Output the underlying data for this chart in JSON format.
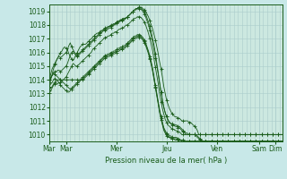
{
  "background_color": "#c8e8e8",
  "plot_bg_color": "#cce8e0",
  "grid_color": "#aacccc",
  "line_color": "#1a5c1a",
  "xlabel": "Pression niveau de la mer( hPa )",
  "ylim": [
    1009.5,
    1019.5
  ],
  "yticks": [
    1010,
    1011,
    1012,
    1013,
    1014,
    1015,
    1016,
    1017,
    1018,
    1019
  ],
  "xtick_labels": [
    "Mar",
    "Mar",
    "Mer",
    "Jeu",
    "Ven",
    "Sam",
    "Dim"
  ],
  "xtick_positions": [
    0,
    12,
    48,
    84,
    120,
    150,
    162
  ],
  "num_points": 168,
  "series": [
    [
      1013.5,
      1014.0,
      1014.4,
      1014.8,
      1015.1,
      1015.4,
      1015.6,
      1015.8,
      1016.0,
      1016.1,
      1016.3,
      1016.4,
      1016.3,
      1016.2,
      1015.9,
      1015.7,
      1015.5,
      1015.4,
      1015.6,
      1015.8,
      1016.0,
      1016.2,
      1016.4,
      1016.5,
      1016.6,
      1016.6,
      1016.6,
      1016.7,
      1016.8,
      1016.9,
      1017.0,
      1017.1,
      1017.2,
      1017.3,
      1017.4,
      1017.4,
      1017.5,
      1017.6,
      1017.6,
      1017.7,
      1017.7,
      1017.8,
      1017.8,
      1017.9,
      1017.9,
      1018.0,
      1018.0,
      1018.1,
      1018.2,
      1018.2,
      1018.3,
      1018.3,
      1018.4,
      1018.4,
      1018.5,
      1018.5,
      1018.6,
      1018.7,
      1018.8,
      1018.9,
      1019.0,
      1019.1,
      1019.2,
      1019.2,
      1019.3,
      1019.3,
      1019.3,
      1019.2,
      1019.1,
      1019.0,
      1018.8,
      1018.6,
      1018.3,
      1018.0,
      1017.7,
      1017.3,
      1016.9,
      1016.4,
      1015.9,
      1015.3,
      1014.8,
      1014.2,
      1013.5,
      1013.0,
      1012.5,
      1012.2,
      1011.9,
      1011.7,
      1011.5,
      1011.4,
      1011.3,
      1011.3,
      1011.2,
      1011.2,
      1011.1,
      1011.0,
      1011.0,
      1011.0,
      1011.0,
      1011.0,
      1010.9,
      1010.9,
      1010.8,
      1010.7,
      1010.6,
      1010.5,
      1010.3,
      1010.0,
      1010.0,
      1010.0,
      1010.0,
      1010.0,
      1010.0,
      1010.0,
      1010.0,
      1010.0,
      1010.0,
      1010.0,
      1010.0,
      1010.0,
      1010.0,
      1010.0,
      1010.0,
      1010.0,
      1010.0,
      1010.0,
      1010.0,
      1010.0,
      1010.0,
      1010.0,
      1010.0,
      1010.0,
      1010.0,
      1010.0,
      1010.0,
      1010.0,
      1010.0,
      1010.0,
      1010.0,
      1010.0,
      1010.0,
      1010.0,
      1010.0,
      1010.0,
      1010.0,
      1010.0,
      1010.0,
      1010.0,
      1010.0,
      1010.0,
      1010.0,
      1010.0,
      1010.0,
      1010.0,
      1010.0,
      1010.0,
      1010.0,
      1010.0,
      1010.0,
      1010.0,
      1010.0,
      1010.0,
      1010.0,
      1010.0,
      1010.0,
      1010.0,
      1010.0,
      1010.0
    ],
    [
      1014.0,
      1014.4,
      1014.8,
      1015.0,
      1015.2,
      1015.4,
      1015.6,
      1015.7,
      1015.6,
      1015.7,
      1015.8,
      1015.9,
      1016.0,
      1016.2,
      1016.5,
      1016.7,
      1016.4,
      1016.2,
      1016.0,
      1015.9,
      1015.8,
      1015.9,
      1016.0,
      1016.1,
      1016.2,
      1016.3,
      1016.4,
      1016.5,
      1016.6,
      1016.7,
      1016.8,
      1016.9,
      1017.0,
      1017.1,
      1017.2,
      1017.3,
      1017.4,
      1017.5,
      1017.6,
      1017.7,
      1017.8,
      1017.8,
      1017.9,
      1017.9,
      1018.0,
      1018.0,
      1018.1,
      1018.1,
      1018.2,
      1018.3,
      1018.3,
      1018.4,
      1018.4,
      1018.5,
      1018.5,
      1018.5,
      1018.6,
      1018.7,
      1018.8,
      1018.9,
      1019.0,
      1019.1,
      1019.2,
      1019.2,
      1019.3,
      1019.3,
      1019.2,
      1019.1,
      1019.0,
      1018.8,
      1018.5,
      1018.2,
      1017.9,
      1017.5,
      1017.0,
      1016.5,
      1015.9,
      1015.2,
      1014.5,
      1013.8,
      1013.1,
      1012.5,
      1012.0,
      1011.6,
      1011.3,
      1011.1,
      1010.9,
      1010.8,
      1010.8,
      1010.7,
      1010.7,
      1010.7,
      1010.6,
      1010.6,
      1010.5,
      1010.4,
      1010.3,
      1010.2,
      1010.1,
      1010.1,
      1010.0,
      1010.0,
      1010.0,
      1010.0,
      1010.0,
      1010.0,
      1009.9,
      1009.8,
      1009.7,
      1009.6,
      1009.5,
      1009.5,
      1009.5,
      1009.5,
      1009.5,
      1009.5,
      1009.5,
      1009.5,
      1009.5,
      1009.5,
      1009.5,
      1009.5,
      1009.5,
      1009.5,
      1009.5,
      1009.5,
      1009.5,
      1009.5,
      1009.5,
      1009.5,
      1009.5,
      1009.5,
      1009.5,
      1009.5,
      1009.5,
      1009.5,
      1009.5,
      1009.5,
      1009.5,
      1009.5,
      1009.5,
      1009.5,
      1009.5,
      1009.5,
      1009.5,
      1009.5,
      1009.5,
      1009.5,
      1009.5,
      1009.5,
      1009.5,
      1009.5,
      1009.5,
      1009.5,
      1009.5,
      1009.5,
      1009.5,
      1009.5,
      1009.5,
      1009.5,
      1009.5,
      1009.5,
      1009.5,
      1009.5,
      1009.5,
      1009.5,
      1009.5,
      1009.5
    ],
    [
      1013.8,
      1014.1,
      1014.3,
      1014.5,
      1014.6,
      1014.6,
      1014.7,
      1014.7,
      1014.6,
      1014.7,
      1014.8,
      1014.9,
      1015.0,
      1015.2,
      1015.5,
      1015.8,
      1016.0,
      1016.1,
      1015.9,
      1015.8,
      1015.7,
      1015.8,
      1015.9,
      1016.0,
      1016.1,
      1016.2,
      1016.3,
      1016.4,
      1016.5,
      1016.6,
      1016.7,
      1016.8,
      1016.9,
      1017.0,
      1017.1,
      1017.2,
      1017.3,
      1017.4,
      1017.5,
      1017.6,
      1017.6,
      1017.7,
      1017.7,
      1017.8,
      1017.8,
      1017.9,
      1018.0,
      1018.0,
      1018.1,
      1018.2,
      1018.2,
      1018.3,
      1018.3,
      1018.4,
      1018.4,
      1018.5,
      1018.6,
      1018.7,
      1018.8,
      1018.9,
      1019.0,
      1019.1,
      1019.1,
      1019.2,
      1019.2,
      1019.2,
      1019.1,
      1019.0,
      1018.8,
      1018.6,
      1018.3,
      1018.0,
      1017.6,
      1017.2,
      1016.7,
      1016.2,
      1015.6,
      1015.0,
      1014.4,
      1013.7,
      1013.1,
      1012.5,
      1012.0,
      1011.6,
      1011.3,
      1011.0,
      1010.9,
      1010.8,
      1010.7,
      1010.7,
      1010.6,
      1010.6,
      1010.5,
      1010.5,
      1010.4,
      1010.3,
      1010.2,
      1010.1,
      1010.0,
      1010.0,
      1010.0,
      1010.0,
      1010.0,
      1010.0,
      1010.0,
      1009.9,
      1009.8,
      1009.7,
      1009.6,
      1009.5,
      1009.5,
      1009.5,
      1009.5,
      1009.5,
      1009.5,
      1009.5,
      1009.5,
      1009.5,
      1009.5,
      1009.5,
      1009.5,
      1009.5,
      1009.5,
      1009.5,
      1009.5,
      1009.5,
      1009.5,
      1009.5,
      1009.5,
      1009.5,
      1009.5,
      1009.5,
      1009.5,
      1009.5,
      1009.5,
      1009.5,
      1009.5,
      1009.5,
      1009.5,
      1009.5,
      1009.5,
      1009.5,
      1009.5,
      1009.5,
      1009.5,
      1009.5,
      1009.5,
      1009.5,
      1009.5,
      1009.5,
      1009.5,
      1009.5,
      1009.5,
      1009.5,
      1009.5,
      1009.5,
      1009.5,
      1009.5,
      1009.5,
      1009.5,
      1009.5,
      1009.5,
      1009.5,
      1009.5,
      1009.5,
      1009.5,
      1009.5,
      1009.5
    ],
    [
      1013.2,
      1013.4,
      1013.5,
      1013.7,
      1013.7,
      1013.7,
      1013.7,
      1013.8,
      1013.8,
      1013.9,
      1014.0,
      1014.1,
      1014.2,
      1014.4,
      1014.6,
      1014.8,
      1015.0,
      1015.2,
      1015.1,
      1015.0,
      1015.0,
      1015.1,
      1015.2,
      1015.3,
      1015.4,
      1015.5,
      1015.6,
      1015.7,
      1015.8,
      1015.9,
      1016.0,
      1016.2,
      1016.3,
      1016.4,
      1016.5,
      1016.6,
      1016.7,
      1016.8,
      1016.9,
      1017.0,
      1017.1,
      1017.1,
      1017.2,
      1017.2,
      1017.3,
      1017.4,
      1017.4,
      1017.5,
      1017.5,
      1017.6,
      1017.7,
      1017.7,
      1017.8,
      1017.8,
      1017.9,
      1018.0,
      1018.0,
      1018.1,
      1018.2,
      1018.3,
      1018.4,
      1018.5,
      1018.5,
      1018.6,
      1018.6,
      1018.6,
      1018.5,
      1018.4,
      1018.2,
      1018.0,
      1017.7,
      1017.4,
      1017.0,
      1016.6,
      1016.1,
      1015.5,
      1014.9,
      1014.3,
      1013.7,
      1013.0,
      1012.4,
      1011.9,
      1011.5,
      1011.1,
      1010.9,
      1010.7,
      1010.6,
      1010.5,
      1010.4,
      1010.4,
      1010.3,
      1010.3,
      1010.2,
      1010.2,
      1010.1,
      1010.0,
      1010.0,
      1010.0,
      1010.0,
      1010.0,
      1010.0,
      1010.0,
      1010.0,
      1010.0,
      1010.0,
      1010.0,
      1010.0,
      1010.0,
      1010.0,
      1010.0,
      1010.0,
      1010.0,
      1010.0,
      1010.0,
      1010.0,
      1010.0,
      1010.0,
      1010.0,
      1010.0,
      1010.0,
      1010.0,
      1010.0,
      1010.0,
      1010.0,
      1010.0,
      1010.0,
      1010.0,
      1010.0,
      1010.0,
      1010.0,
      1010.0,
      1010.0,
      1010.0,
      1010.0,
      1010.0,
      1010.0,
      1010.0,
      1010.0,
      1010.0,
      1010.0,
      1010.0,
      1010.0,
      1010.0,
      1010.0,
      1010.0,
      1010.0,
      1010.0,
      1010.0,
      1010.0,
      1010.0,
      1010.0,
      1010.0,
      1010.0,
      1010.0,
      1010.0,
      1010.0,
      1010.0,
      1010.0,
      1010.0,
      1010.0,
      1010.0,
      1010.0,
      1010.0,
      1010.0,
      1010.0,
      1010.0,
      1010.0,
      1010.0
    ],
    [
      1014.0,
      1014.2,
      1014.3,
      1014.5,
      1014.4,
      1014.3,
      1014.2,
      1014.1,
      1014.0,
      1013.9,
      1013.8,
      1013.7,
      1013.6,
      1013.5,
      1013.4,
      1013.3,
      1013.4,
      1013.5,
      1013.6,
      1013.7,
      1013.8,
      1013.9,
      1014.0,
      1014.1,
      1014.2,
      1014.3,
      1014.4,
      1014.5,
      1014.6,
      1014.7,
      1014.8,
      1014.9,
      1015.0,
      1015.1,
      1015.2,
      1015.3,
      1015.4,
      1015.5,
      1015.6,
      1015.7,
      1015.8,
      1015.8,
      1015.9,
      1015.9,
      1016.0,
      1016.0,
      1016.1,
      1016.1,
      1016.2,
      1016.3,
      1016.3,
      1016.4,
      1016.4,
      1016.5,
      1016.5,
      1016.6,
      1016.7,
      1016.8,
      1016.9,
      1017.0,
      1017.1,
      1017.2,
      1017.2,
      1017.3,
      1017.3,
      1017.3,
      1017.2,
      1017.1,
      1016.9,
      1016.7,
      1016.4,
      1016.1,
      1015.7,
      1015.3,
      1014.8,
      1014.2,
      1013.6,
      1013.0,
      1012.4,
      1011.8,
      1011.3,
      1010.9,
      1010.5,
      1010.3,
      1010.1,
      1010.0,
      1009.9,
      1009.9,
      1009.8,
      1009.8,
      1009.8,
      1009.8,
      1009.7,
      1009.7,
      1009.6,
      1009.6,
      1009.6,
      1009.5,
      1009.5,
      1009.5,
      1009.5,
      1009.5,
      1009.5,
      1009.5,
      1009.5,
      1009.5,
      1009.5,
      1009.5,
      1009.5,
      1009.5,
      1009.5,
      1009.5,
      1009.5,
      1009.5,
      1009.5,
      1009.5,
      1009.5,
      1009.5,
      1009.5,
      1009.5,
      1009.5,
      1009.5,
      1009.5,
      1009.5,
      1009.5,
      1009.5,
      1009.5,
      1009.5,
      1009.5,
      1009.5,
      1009.5,
      1009.5,
      1009.5,
      1009.5,
      1009.5,
      1009.5,
      1009.5,
      1009.5,
      1009.5,
      1009.5,
      1009.5,
      1009.5,
      1009.5,
      1009.5,
      1009.5,
      1009.5,
      1009.5,
      1009.5,
      1009.5,
      1009.5,
      1009.5,
      1009.5,
      1009.5,
      1009.5,
      1009.5,
      1009.5,
      1009.5,
      1009.5,
      1009.5,
      1009.5,
      1009.5,
      1009.5,
      1009.5,
      1009.5,
      1009.5,
      1009.5,
      1009.5,
      1009.5
    ],
    [
      1013.5,
      1013.7,
      1013.8,
      1014.0,
      1014.1,
      1014.0,
      1013.9,
      1013.8,
      1013.6,
      1013.5,
      1013.4,
      1013.3,
      1013.2,
      1013.1,
      1013.1,
      1013.2,
      1013.3,
      1013.4,
      1013.5,
      1013.6,
      1013.7,
      1013.8,
      1013.9,
      1014.0,
      1014.1,
      1014.2,
      1014.3,
      1014.4,
      1014.5,
      1014.6,
      1014.7,
      1014.8,
      1014.9,
      1015.0,
      1015.1,
      1015.2,
      1015.3,
      1015.4,
      1015.5,
      1015.6,
      1015.7,
      1015.7,
      1015.8,
      1015.8,
      1015.9,
      1015.9,
      1016.0,
      1016.0,
      1016.1,
      1016.2,
      1016.2,
      1016.3,
      1016.3,
      1016.4,
      1016.4,
      1016.5,
      1016.6,
      1016.7,
      1016.8,
      1016.9,
      1017.0,
      1017.1,
      1017.1,
      1017.2,
      1017.2,
      1017.2,
      1017.1,
      1017.0,
      1016.8,
      1016.6,
      1016.3,
      1016.0,
      1015.6,
      1015.2,
      1014.7,
      1014.1,
      1013.5,
      1012.9,
      1012.3,
      1011.7,
      1011.2,
      1010.8,
      1010.4,
      1010.2,
      1010.0,
      1009.9,
      1009.8,
      1009.8,
      1009.7,
      1009.7,
      1009.7,
      1009.7,
      1009.6,
      1009.6,
      1009.6,
      1009.5,
      1009.5,
      1009.5,
      1009.5,
      1009.5,
      1009.5,
      1009.5,
      1009.5,
      1009.5,
      1009.5,
      1009.5,
      1009.5,
      1009.5,
      1009.5,
      1009.5,
      1009.5,
      1009.5,
      1009.5,
      1009.5,
      1009.5,
      1009.5,
      1009.5,
      1009.5,
      1009.5,
      1009.5,
      1009.5,
      1009.5,
      1009.5,
      1009.5,
      1009.5,
      1009.5,
      1009.5,
      1009.5,
      1009.5,
      1009.5,
      1009.5,
      1009.5,
      1009.5,
      1009.5,
      1009.5,
      1009.5,
      1009.5,
      1009.5,
      1009.5,
      1009.5,
      1009.5,
      1009.5,
      1009.5,
      1009.5,
      1009.5,
      1009.5,
      1009.5,
      1009.5,
      1009.5,
      1009.5,
      1009.5,
      1009.5,
      1009.5,
      1009.5,
      1009.5,
      1009.5,
      1009.5,
      1009.5,
      1009.5,
      1009.5,
      1009.5,
      1009.5,
      1009.5,
      1009.5,
      1009.5,
      1009.5,
      1009.5,
      1009.5
    ],
    [
      1013.0,
      1013.2,
      1013.4,
      1013.6,
      1013.8,
      1013.9,
      1014.0,
      1014.0,
      1014.0,
      1014.0,
      1014.0,
      1014.0,
      1014.0,
      1014.0,
      1014.0,
      1014.0,
      1014.0,
      1014.0,
      1014.0,
      1014.0,
      1014.0,
      1014.0,
      1014.0,
      1014.0,
      1014.0,
      1014.1,
      1014.2,
      1014.3,
      1014.4,
      1014.5,
      1014.6,
      1014.7,
      1014.8,
      1014.9,
      1015.0,
      1015.1,
      1015.2,
      1015.3,
      1015.4,
      1015.5,
      1015.6,
      1015.6,
      1015.7,
      1015.7,
      1015.8,
      1015.8,
      1015.9,
      1015.9,
      1016.0,
      1016.1,
      1016.1,
      1016.2,
      1016.2,
      1016.3,
      1016.3,
      1016.4,
      1016.5,
      1016.6,
      1016.7,
      1016.8,
      1016.9,
      1017.0,
      1017.0,
      1017.1,
      1017.1,
      1017.1,
      1017.0,
      1016.9,
      1016.7,
      1016.5,
      1016.2,
      1015.9,
      1015.5,
      1015.1,
      1014.6,
      1014.0,
      1013.4,
      1012.8,
      1012.2,
      1011.6,
      1011.1,
      1010.7,
      1010.3,
      1010.1,
      1009.9,
      1009.8,
      1009.8,
      1009.7,
      1009.7,
      1009.7,
      1009.6,
      1009.6,
      1009.6,
      1009.5,
      1009.5,
      1009.5,
      1009.5,
      1009.5,
      1009.5,
      1009.5,
      1009.5,
      1009.5,
      1009.5,
      1009.5,
      1009.5,
      1009.5,
      1009.5,
      1009.5,
      1009.5,
      1009.5,
      1009.5,
      1009.5,
      1009.5,
      1009.5,
      1009.5,
      1009.5,
      1009.5,
      1009.5,
      1009.5,
      1009.5,
      1009.5,
      1009.5,
      1009.5,
      1009.5,
      1009.5,
      1009.5,
      1009.5,
      1009.5,
      1009.5,
      1009.5,
      1009.5,
      1009.5,
      1009.5,
      1009.5,
      1009.5,
      1009.5,
      1009.5,
      1009.5,
      1009.5,
      1009.5,
      1009.5,
      1009.5,
      1009.5,
      1009.5,
      1009.5,
      1009.5,
      1009.5,
      1009.5,
      1009.5,
      1009.5,
      1009.5,
      1009.5,
      1009.5,
      1009.5,
      1009.5,
      1009.5,
      1009.5,
      1009.5,
      1009.5,
      1009.5,
      1009.5,
      1009.5,
      1009.5,
      1009.5,
      1009.5,
      1009.5,
      1009.5,
      1009.5
    ]
  ]
}
